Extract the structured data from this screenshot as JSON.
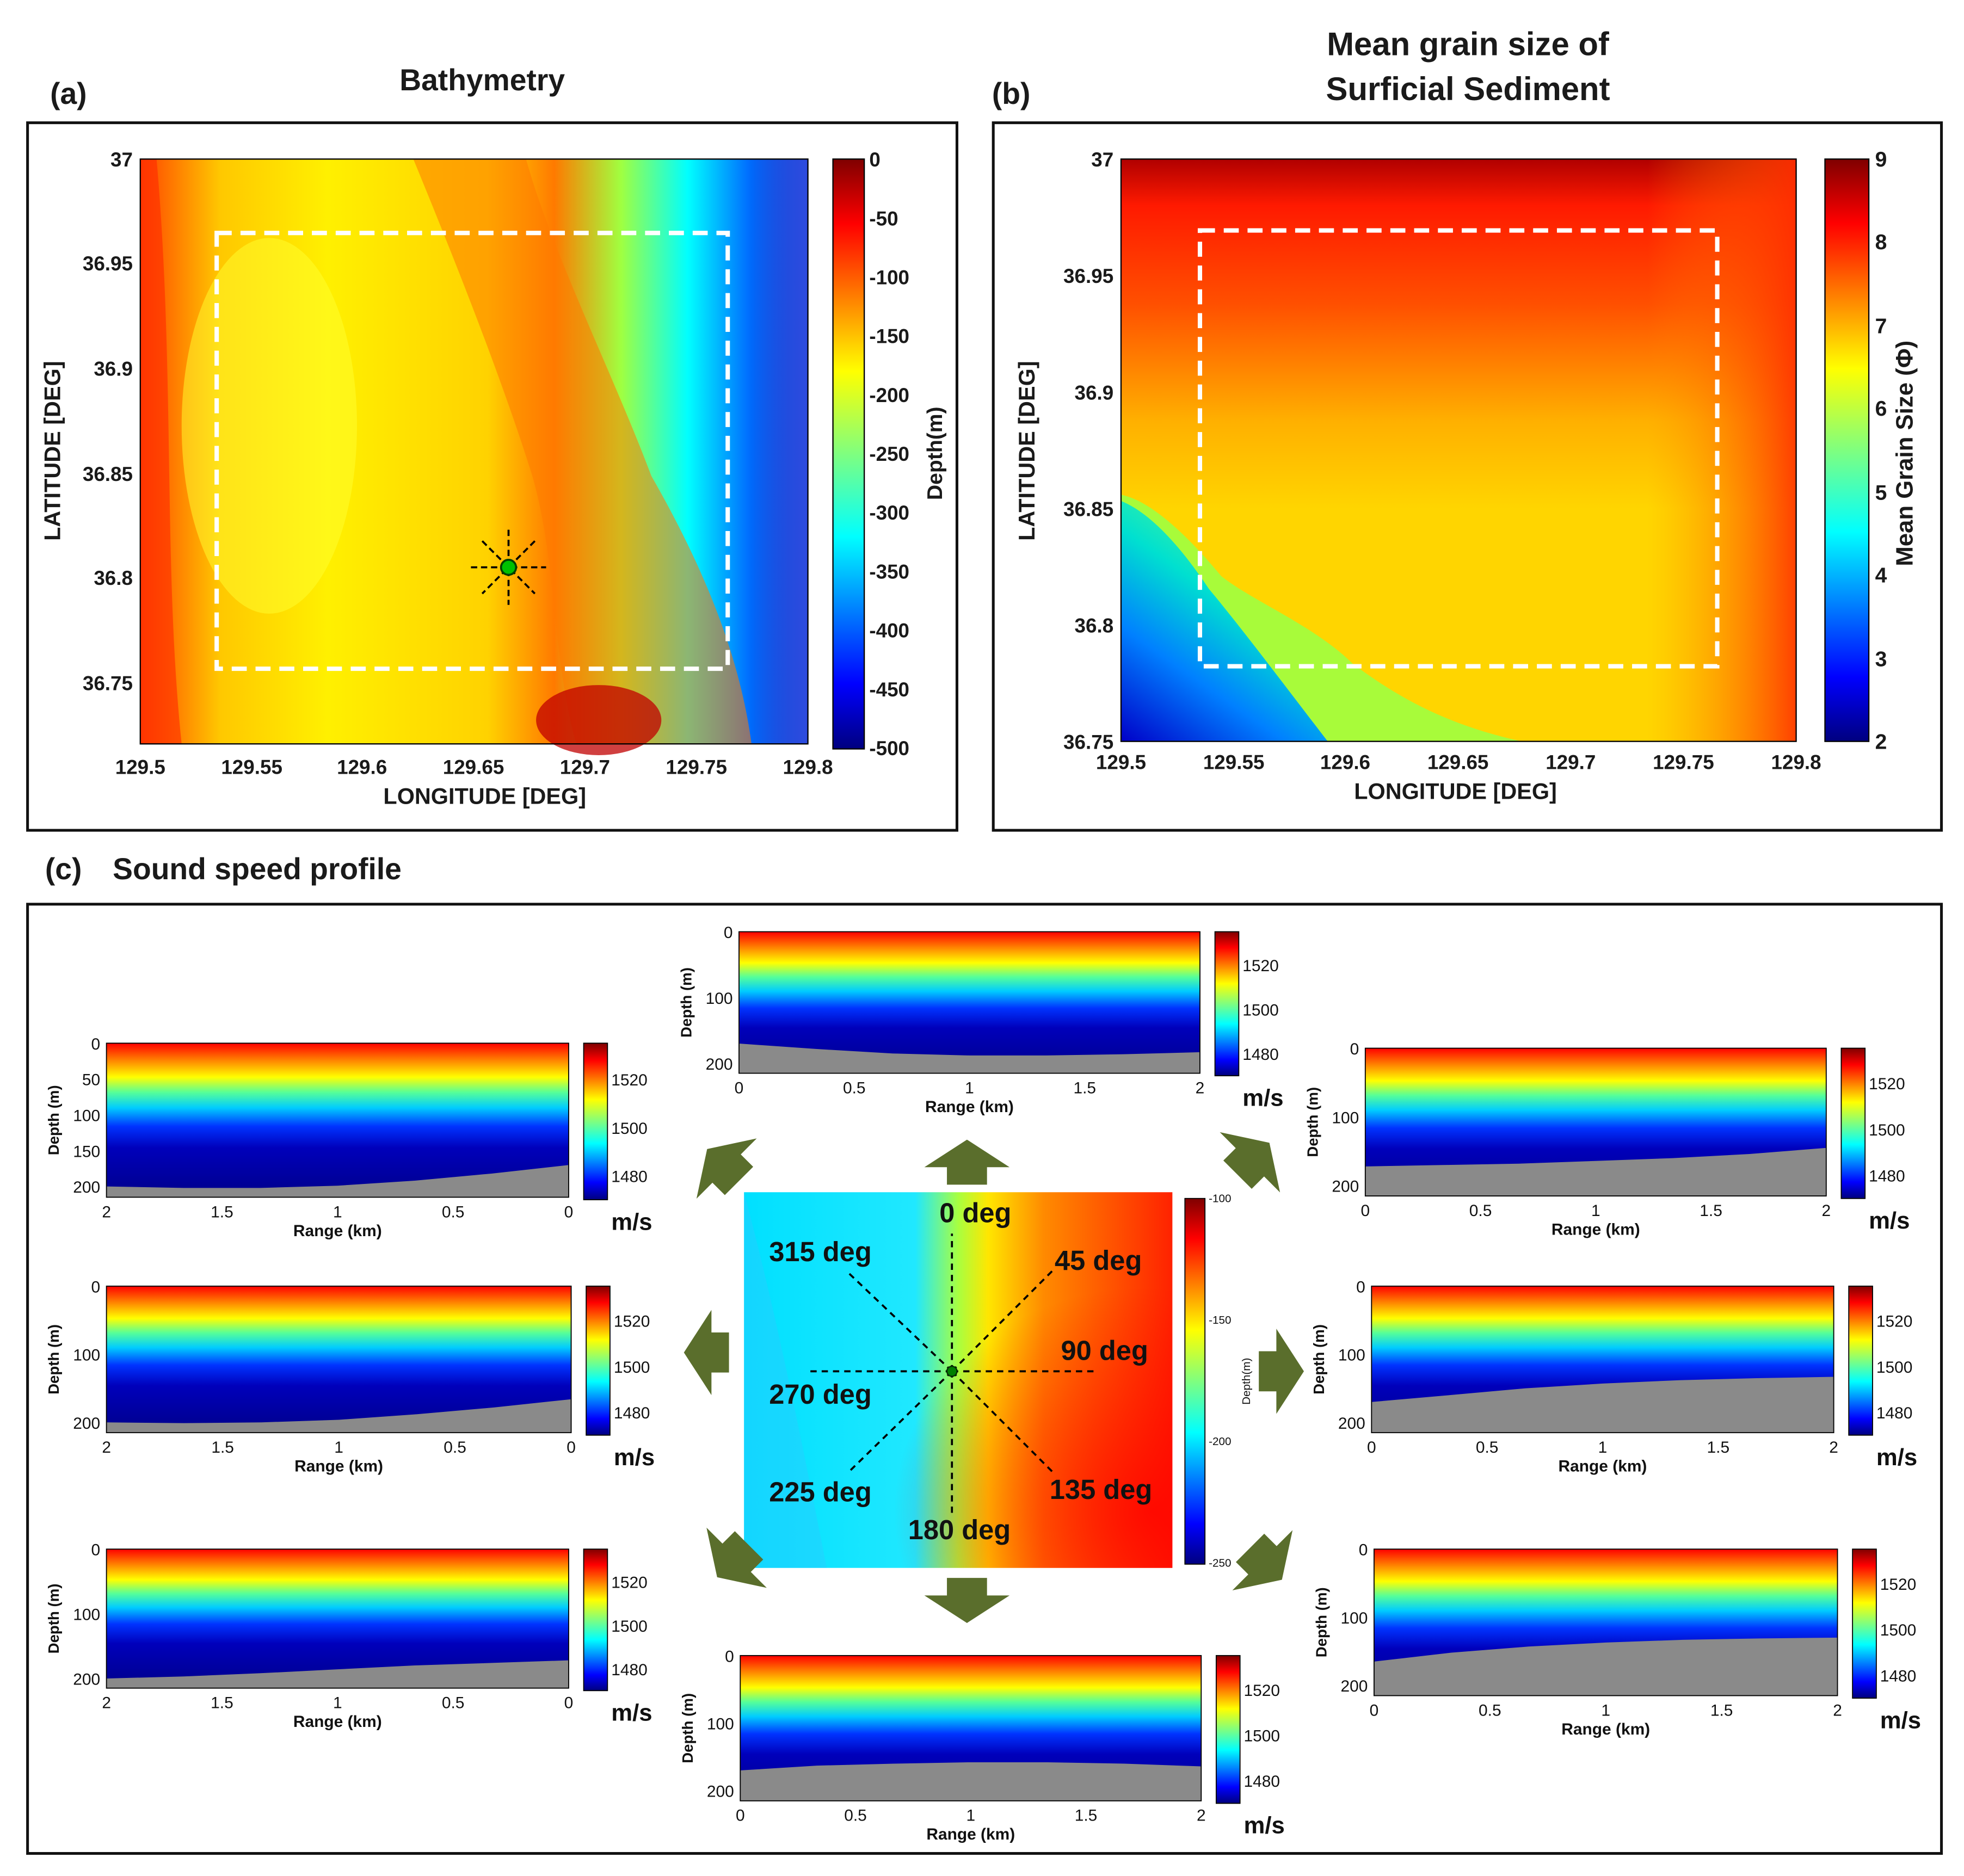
{
  "chart_data": [
    {
      "id": "a",
      "type": "heatmap",
      "panel_label": "(a)",
      "title": "Bathymetry",
      "xlabel": "LONGITUDE [DEG]",
      "ylabel": "LATITUDE [DEG]",
      "xlim": [
        129.5,
        129.8
      ],
      "ylim": [
        36.72,
        37.0
      ],
      "xticks": [
        "129.5",
        "129.55",
        "129.6",
        "129.65",
        "129.7",
        "129.75",
        "129.8"
      ],
      "yticks": [
        "37",
        "36.95",
        "36.9",
        "36.85",
        "36.8",
        "36.75"
      ],
      "colorbar": {
        "label": "Depth(m)",
        "range": [
          -500,
          0
        ],
        "ticks": [
          "0",
          "-50",
          "-100",
          "-150",
          "-200",
          "-250",
          "-300",
          "-350",
          "-400",
          "-450",
          "-500"
        ]
      },
      "field_description": "Shallow (~-150 m, yellow-orange) over the western half, a ridge of ~-100 m along lon 129.63-129.72, deepening steeply eastward to below -450 m near 129.8",
      "study_area_box": {
        "lon": [
          129.535,
          129.765
        ],
        "lat": [
          36.758,
          36.965
        ]
      },
      "source_marker": {
        "lon": 129.665,
        "lat": 36.806
      }
    },
    {
      "id": "b",
      "type": "heatmap",
      "panel_label": "(b)",
      "title_lines": [
        "Mean grain size of",
        "Surficial Sediment"
      ],
      "xlabel": "LONGITUDE [DEG]",
      "ylabel": "LATITUDE [DEG]",
      "xlim": [
        129.5,
        129.8
      ],
      "ylim": [
        36.75,
        37.0
      ],
      "xticks": [
        "129.5",
        "129.55",
        "129.6",
        "129.65",
        "129.7",
        "129.75",
        "129.8"
      ],
      "yticks": [
        "37",
        "36.95",
        "36.9",
        "36.85",
        "36.8",
        "36.75"
      ],
      "colorbar": {
        "label": "Mean Grain Size (Φ)",
        "range": [
          2,
          9
        ],
        "ticks": [
          "9",
          "8",
          "7",
          "6",
          "5",
          "4",
          "3",
          "2"
        ]
      },
      "field_description": "~9 Φ at the northern edge decreasing to ~7 Φ in the interior; coarse (~2-4 Φ) in the south-west corner; ~8 Φ at the south-east edge",
      "study_area_box": {
        "lon": [
          129.535,
          129.765
        ],
        "lat": [
          36.78,
          36.965
        ]
      }
    },
    {
      "id": "c-center",
      "type": "heatmap",
      "description": "Local bathymetry around the source with 8 radial transects",
      "colorbar": {
        "ticks": [
          "-100",
          "-150",
          "-200",
          "-250"
        ],
        "label": "Depth(m)",
        "range": [
          -250,
          -100
        ]
      },
      "bearings": [
        "0 deg",
        "45 deg",
        "90 deg",
        "135 deg",
        "180 deg",
        "225 deg",
        "270 deg",
        "315 deg"
      ]
    },
    {
      "id": "c-profiles",
      "type": "heatmap",
      "description": "Range-depth sound speed sections along each bearing; warm surface layer (~1530 m/s) over a cold deep layer (~1470 m/s), with the seabed shown in gray",
      "sound_speed_range": [
        1470,
        1535
      ],
      "colorbar_ticks": [
        "1520",
        "1500",
        "1480"
      ],
      "colorbar_unit": "m/s",
      "xlabel": "Range (km)",
      "ylabel": "Depth (m)",
      "range_km": [
        0,
        2
      ],
      "profiles": [
        {
          "bearing": "0 deg",
          "x_reversed": false,
          "xticks": [
            "0",
            "0.5",
            "1",
            "1.5",
            "2"
          ],
          "yticks": [
            "0",
            "100",
            "200"
          ],
          "seabed_depth_m": [
            170,
            178,
            185,
            188,
            188,
            186,
            183
          ]
        },
        {
          "bearing": "45 deg",
          "x_reversed": false,
          "xticks": [
            "0",
            "0.5",
            "1",
            "1.5",
            "2"
          ],
          "yticks": [
            "0",
            "100",
            "200"
          ],
          "seabed_depth_m": [
            172,
            170,
            168,
            164,
            160,
            154,
            145
          ]
        },
        {
          "bearing": "90 deg",
          "x_reversed": false,
          "xticks": [
            "0",
            "0.5",
            "1",
            "1.5",
            "2"
          ],
          "yticks": [
            "0",
            "100",
            "200"
          ],
          "seabed_depth_m": [
            170,
            160,
            150,
            143,
            138,
            135,
            133
          ]
        },
        {
          "bearing": "135 deg",
          "x_reversed": false,
          "xticks": [
            "0",
            "0.5",
            "1",
            "1.5",
            "2"
          ],
          "yticks": [
            "0",
            "100",
            "200"
          ],
          "seabed_depth_m": [
            165,
            152,
            143,
            137,
            133,
            131,
            130
          ]
        },
        {
          "bearing": "180 deg",
          "x_reversed": false,
          "xticks": [
            "0",
            "0.5",
            "1",
            "1.5",
            "2"
          ],
          "yticks": [
            "0",
            "100",
            "200"
          ],
          "seabed_depth_m": [
            170,
            163,
            160,
            158,
            158,
            160,
            164
          ]
        },
        {
          "bearing": "225 deg",
          "x_reversed": true,
          "xticks": [
            "2",
            "1.5",
            "1",
            "0.5",
            "0"
          ],
          "yticks": [
            "0",
            "100",
            "200"
          ],
          "seabed_depth_m": [
            200,
            197,
            192,
            186,
            180,
            176,
            172
          ]
        },
        {
          "bearing": "270 deg",
          "x_reversed": true,
          "xticks": [
            "2",
            "1.5",
            "1",
            "0.5",
            "0"
          ],
          "yticks": [
            "0",
            "100",
            "200"
          ],
          "seabed_depth_m": [
            200,
            201,
            200,
            196,
            188,
            178,
            166
          ]
        },
        {
          "bearing": "315 deg",
          "x_reversed": true,
          "xticks": [
            "2",
            "1.5",
            "1",
            "0.5",
            "0"
          ],
          "yticks": [
            "0",
            "50",
            "100",
            "150",
            "200"
          ],
          "seabed_depth_m": [
            200,
            202,
            202,
            199,
            192,
            182,
            170
          ]
        }
      ]
    }
  ],
  "section_c": {
    "label": "(c)",
    "title": "Sound speed profile"
  }
}
